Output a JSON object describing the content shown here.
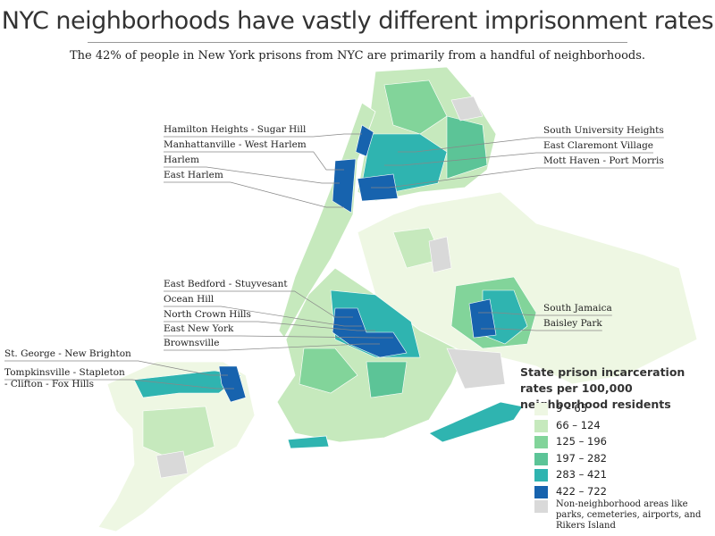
{
  "header": {
    "title": "NYC neighborhoods have vastly different imprisonment rates",
    "subtitle": "The 42% of people in New York prisons from NYC are primarily from a handful of neighborhoods."
  },
  "labels": [
    "Hamilton Heights - Sugar Hill",
    "Manhattanville - West Harlem",
    "Harlem",
    "East Harlem",
    "South University Heights",
    "East Claremont Village",
    "Mott Haven - Port Morris",
    "East Bedford - Stuyvesant",
    "Ocean Hill",
    "North Crown Hills",
    "East New York",
    "Brownsville",
    "South Jamaica",
    "Baisley Park",
    "St. George - New Brighton",
    "Tompkinsville - Stapleton",
    "- Clifton - Fox Hills"
  ],
  "legend": {
    "title": "State prison incarceration rates per 100,000 neighborhood residents",
    "items": [
      {
        "label": "9 – 65",
        "color": "#eef7e3"
      },
      {
        "label": "66 – 124",
        "color": "#c6e9bd"
      },
      {
        "label": "125 – 196",
        "color": "#82d49a"
      },
      {
        "label": "197 – 282",
        "color": "#5cc497"
      },
      {
        "label": "283 – 421",
        "color": "#2fb4b0"
      },
      {
        "label": "422 – 722",
        "color": "#1763ae"
      }
    ],
    "note": {
      "label": "Non-neighborhood areas like parks, cemeteries, airports, and Rikers Island",
      "color": "#d9d9d9"
    }
  }
}
